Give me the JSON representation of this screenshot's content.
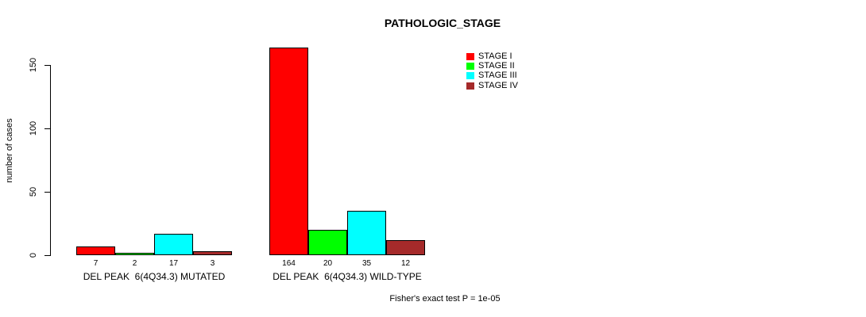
{
  "chart_data": {
    "type": "bar",
    "title": "PATHOLOGIC_STAGE",
    "ylabel": "number of cases",
    "ylim": [
      0,
      150
    ],
    "yticks": [
      0,
      50,
      100,
      150
    ],
    "categories": [
      "DEL PEAK  6(4Q34.3) MUTATED",
      "DEL PEAK  6(4Q34.3) WILD-TYPE"
    ],
    "series": [
      {
        "name": "STAGE I",
        "color": "#FF0000",
        "values": [
          7,
          164
        ]
      },
      {
        "name": "STAGE II",
        "color": "#00FF00",
        "values": [
          2,
          20
        ]
      },
      {
        "name": "STAGE III",
        "color": "#00FFFF",
        "values": [
          17,
          35
        ]
      },
      {
        "name": "STAGE IV",
        "color": "#A52A2A",
        "values": [
          3,
          12
        ]
      }
    ],
    "bar_value_labels": [
      [
        "7",
        "2",
        "17",
        "3"
      ],
      [
        "164",
        "20",
        "35",
        "12"
      ]
    ],
    "legend_position": "top-right",
    "grid": false,
    "footnote": "Fisher's exact test P = 1e-05"
  },
  "colors": {
    "background": "#FFFFFF",
    "bar_border": "#000000",
    "axis": "#000000",
    "text": "#000000"
  }
}
